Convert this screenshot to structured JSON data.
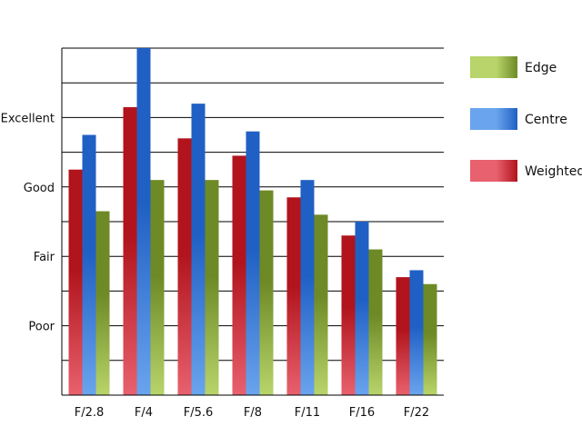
{
  "chart_data": {
    "type": "bar",
    "title": "",
    "xlabel": "",
    "ylabel": "",
    "categories": [
      "F/2.8",
      "F/4",
      "F/5.6",
      "F/8",
      "F/11",
      "F/16",
      "F/22"
    ],
    "series": [
      {
        "name": "Weighted",
        "values": [
          6.5,
          8.3,
          7.4,
          6.9,
          5.7,
          4.6,
          3.4
        ],
        "colors": {
          "dark": "#b1141c",
          "light": "#e8616e"
        }
      },
      {
        "name": "Centre",
        "values": [
          7.5,
          10.0,
          8.4,
          7.6,
          6.2,
          5.0,
          3.6
        ],
        "colors": {
          "dark": "#2060c4",
          "light": "#6aa4ee"
        }
      },
      {
        "name": "Edge",
        "values": [
          5.3,
          6.2,
          6.2,
          5.9,
          5.2,
          4.2,
          3.2
        ],
        "colors": {
          "dark": "#6e8a26",
          "light": "#b8d46a"
        }
      }
    ],
    "y_tick_labels": [
      {
        "value": 2,
        "label": "Poor"
      },
      {
        "value": 4,
        "label": "Fair"
      },
      {
        "value": 6,
        "label": "Good"
      },
      {
        "value": 8,
        "label": "Excellent"
      }
    ],
    "ylim": [
      0,
      10
    ],
    "gridlines": [
      1,
      2,
      3,
      4,
      5,
      6,
      7,
      8,
      9,
      10
    ],
    "grid": true,
    "legend": {
      "placement": "right",
      "order": [
        "Edge",
        "Centre",
        "Weighted"
      ]
    },
    "colors": {
      "grid": "#000000",
      "axis": "#000000"
    }
  }
}
